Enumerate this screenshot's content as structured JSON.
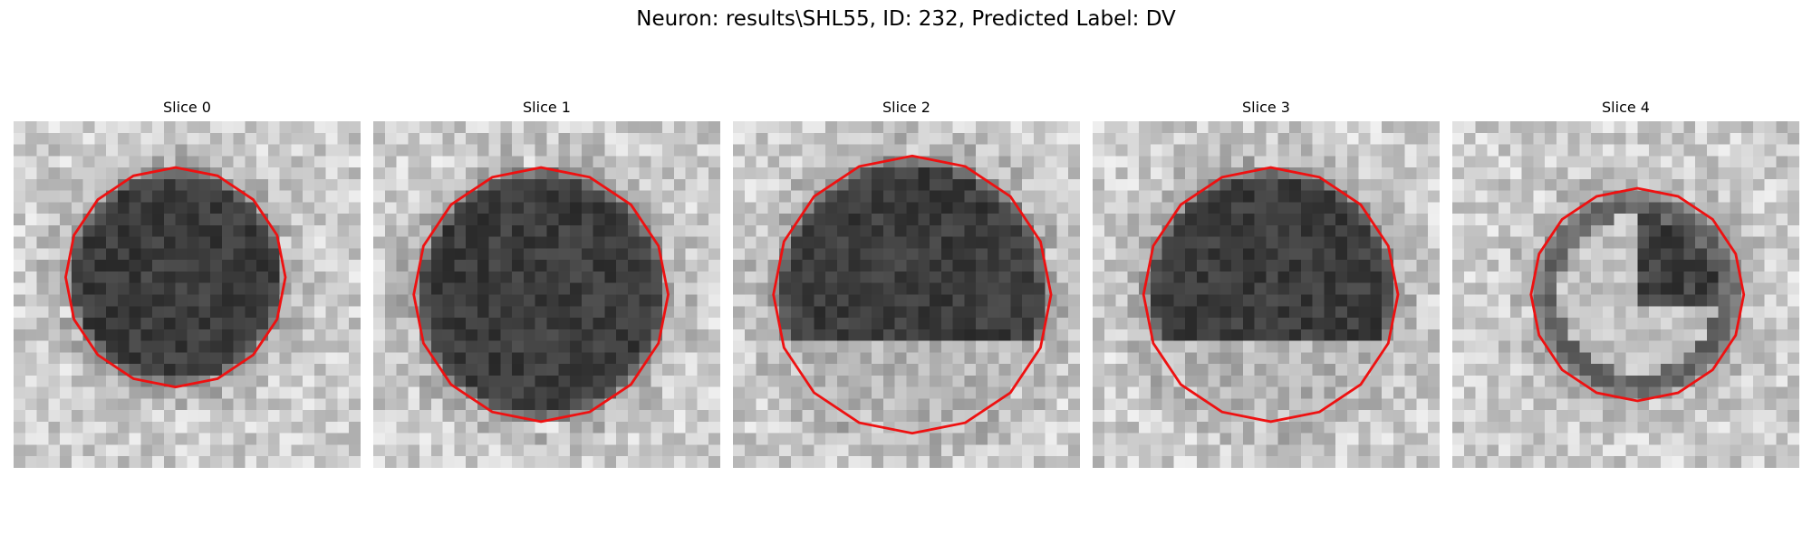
{
  "title": "Neuron: results\\SHL55, ID: 232, Predicted Label: DV",
  "panels": [
    {
      "title": "Slice 0"
    },
    {
      "title": "Slice 1"
    },
    {
      "title": "Slice 2"
    },
    {
      "title": "Slice 3"
    },
    {
      "title": "Slice 4"
    }
  ]
}
